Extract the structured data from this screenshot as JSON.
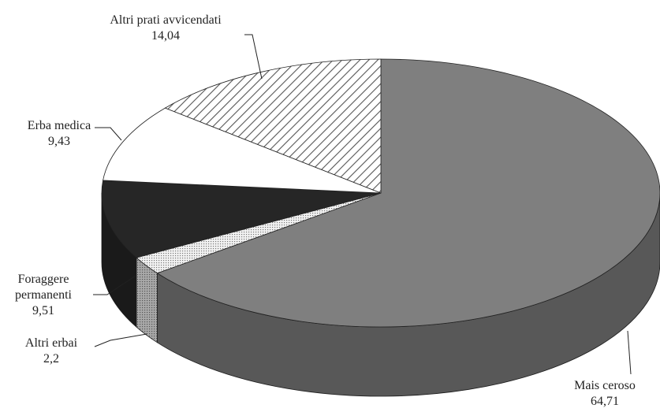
{
  "chart_data": {
    "type": "pie",
    "categories": [
      "Mais ceroso",
      "Altri erbai",
      "Foraggere permanenti",
      "Erba medica",
      "Altri prati avvicendati"
    ],
    "values": [
      64.71,
      2.2,
      9.51,
      9.43,
      14.04
    ],
    "value_labels": [
      "64,71",
      "2,2",
      "9,51",
      "9,43",
      "14,04"
    ],
    "colors": [
      "#7f7f7f",
      "url(#dots)",
      "#262626",
      "#ffffff",
      "url(#hatch)"
    ]
  }
}
